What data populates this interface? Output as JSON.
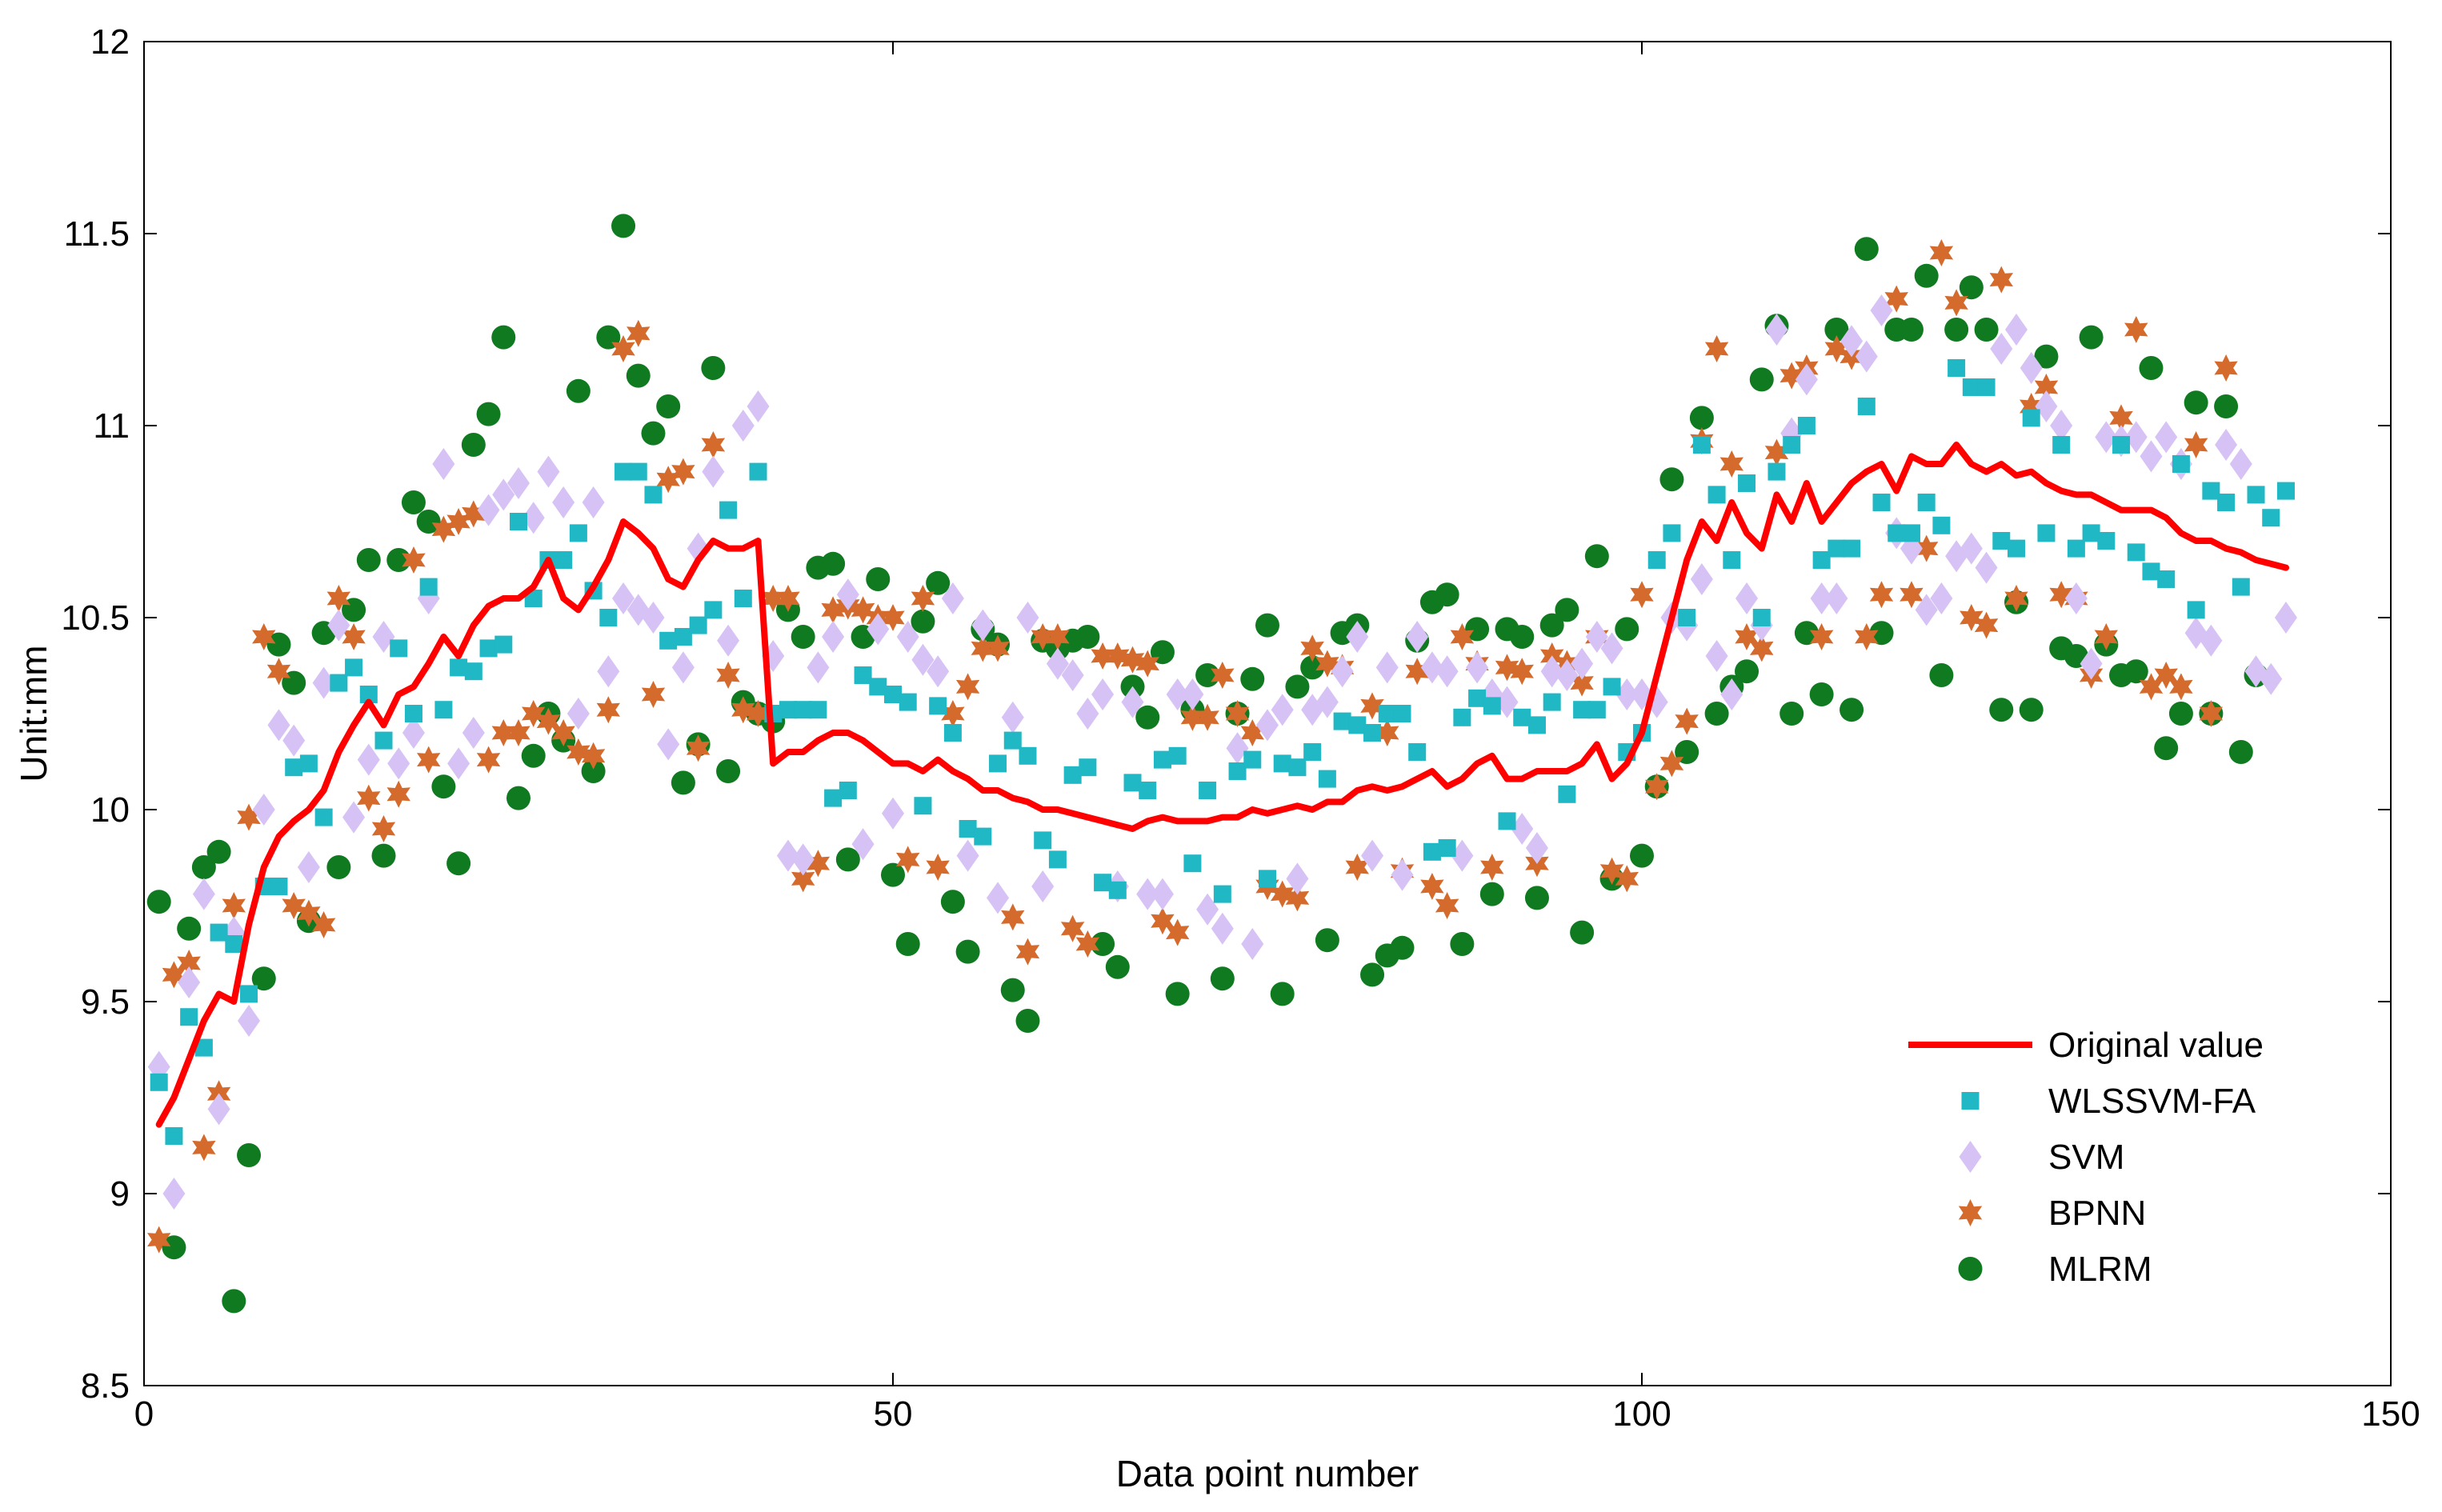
{
  "chart_data": {
    "type": "line",
    "xlabel": "Data point number",
    "ylabel": "Unit:mm",
    "xlim": [
      0,
      150
    ],
    "ylim": [
      8.5,
      12
    ],
    "xticks": [
      "0",
      "50",
      "100",
      "150"
    ],
    "yticks": [
      "8.5",
      "9",
      "9.5",
      "10",
      "10.5",
      "11",
      "11.5",
      "12"
    ],
    "grid": false,
    "legend_position": "bottom-right",
    "series": [
      {
        "name": "Original value",
        "type": "line",
        "color": "#ff0000",
        "values": [
          9.18,
          9.25,
          9.35,
          9.45,
          9.52,
          9.5,
          9.7,
          9.85,
          9.93,
          9.97,
          10.0,
          10.05,
          10.15,
          10.22,
          10.28,
          10.22,
          10.3,
          10.32,
          10.38,
          10.45,
          10.4,
          10.48,
          10.53,
          10.55,
          10.55,
          10.58,
          10.65,
          10.55,
          10.52,
          10.58,
          10.65,
          10.75,
          10.72,
          10.68,
          10.6,
          10.58,
          10.65,
          10.7,
          10.68,
          10.68,
          10.7,
          10.12,
          10.15,
          10.15,
          10.18,
          10.2,
          10.2,
          10.18,
          10.15,
          10.12,
          10.12,
          10.1,
          10.13,
          10.1,
          10.08,
          10.05,
          10.05,
          10.03,
          10.02,
          10.0,
          10.0,
          9.99,
          9.98,
          9.97,
          9.96,
          9.95,
          9.97,
          9.98,
          9.97,
          9.97,
          9.97,
          9.98,
          9.98,
          10.0,
          9.99,
          10.0,
          10.01,
          10.0,
          10.02,
          10.02,
          10.05,
          10.06,
          10.05,
          10.06,
          10.08,
          10.1,
          10.06,
          10.08,
          10.12,
          10.14,
          10.08,
          10.08,
          10.1,
          10.1,
          10.1,
          10.12,
          10.17,
          10.08,
          10.12,
          10.2,
          10.35,
          10.5,
          10.65,
          10.75,
          10.7,
          10.8,
          10.72,
          10.68,
          10.82,
          10.75,
          10.85,
          10.75,
          10.8,
          10.85,
          10.88,
          10.9,
          10.83,
          10.92,
          10.9,
          10.9,
          10.95,
          10.9,
          10.88,
          10.9,
          10.87,
          10.88,
          10.85,
          10.83,
          10.82,
          10.82,
          10.8,
          10.78,
          10.78,
          10.78,
          10.76,
          10.72,
          10.7,
          10.7,
          10.68,
          10.67,
          10.65,
          10.64,
          10.63
        ]
      },
      {
        "name": "WLSSVM-FA",
        "type": "scatter",
        "marker": "square",
        "color": "#1fb8c4",
        "values": [
          9.29,
          9.15,
          9.46,
          9.38,
          9.68,
          9.65,
          9.52,
          9.8,
          9.8,
          10.11,
          10.12,
          9.98,
          10.33,
          10.37,
          10.3,
          10.18,
          10.42,
          10.25,
          10.58,
          10.26,
          10.37,
          10.36,
          10.42,
          10.43,
          10.75,
          10.55,
          10.65,
          10.65,
          10.72,
          10.57,
          10.5,
          10.88,
          10.88,
          10.82,
          10.44,
          10.45,
          10.48,
          10.52,
          10.78,
          10.55,
          10.88,
          10.25,
          10.26,
          10.26,
          10.26,
          10.03,
          10.05,
          10.35,
          10.32,
          10.3,
          10.28,
          10.01,
          10.27,
          10.2,
          9.95,
          9.93,
          10.12,
          10.18,
          10.14,
          9.92,
          9.87,
          10.09,
          10.11,
          9.81,
          9.79,
          10.07,
          10.05,
          10.13,
          10.14,
          9.86,
          10.05,
          9.78,
          10.1,
          10.13,
          9.82,
          10.12,
          10.11,
          10.15,
          10.08,
          10.23,
          10.22,
          10.2,
          10.25,
          10.25,
          10.15,
          9.89,
          9.9,
          10.24,
          10.29,
          10.27,
          9.97,
          10.24,
          10.22,
          10.28,
          10.04,
          10.26,
          10.26,
          10.32,
          10.15,
          10.2,
          10.65,
          10.72,
          10.5,
          10.95,
          10.82,
          10.65,
          10.85,
          10.5,
          10.88,
          10.95,
          11.0,
          10.65,
          10.68,
          10.68,
          11.05,
          10.8,
          10.72,
          10.72,
          10.8,
          10.74,
          11.15,
          11.1,
          11.1,
          10.7,
          10.68,
          11.02,
          10.72,
          10.95,
          10.68,
          10.72,
          10.7,
          10.95,
          10.67,
          10.62,
          10.6,
          10.9,
          10.52,
          10.83,
          10.8,
          10.58,
          10.82,
          10.76,
          10.83
        ]
      },
      {
        "name": "SVM",
        "type": "scatter",
        "marker": "diamond",
        "color": "#d6c2f5",
        "values": [
          9.33,
          9.0,
          9.55,
          9.78,
          9.22,
          9.68,
          9.45,
          10.0,
          10.22,
          10.18,
          9.85,
          10.33,
          10.48,
          9.98,
          10.13,
          10.45,
          10.12,
          10.2,
          10.55,
          10.9,
          10.12,
          10.2,
          10.78,
          10.82,
          10.85,
          10.76,
          10.88,
          10.8,
          10.25,
          10.8,
          10.36,
          10.55,
          10.52,
          10.5,
          10.17,
          10.37,
          10.68,
          10.88,
          10.44,
          11.0,
          11.05,
          10.4,
          9.88,
          9.87,
          10.37,
          10.45,
          10.56,
          9.91,
          10.47,
          9.99,
          10.45,
          10.39,
          10.36,
          10.55,
          9.88,
          10.48,
          9.77,
          10.24,
          10.5,
          9.8,
          10.38,
          10.35,
          10.25,
          10.3,
          9.8,
          10.28,
          9.78,
          9.78,
          10.3,
          10.3,
          9.74,
          9.69,
          10.16,
          9.65,
          10.22,
          10.26,
          9.82,
          10.26,
          10.28,
          10.36,
          10.45,
          9.88,
          10.37,
          9.83,
          10.45,
          10.37,
          10.36,
          9.88,
          10.37,
          10.3,
          10.28,
          9.95,
          9.9,
          10.36,
          10.35,
          10.38,
          10.45,
          10.42,
          10.3,
          10.3,
          10.28,
          10.5,
          10.48,
          10.6,
          10.4,
          10.3,
          10.55,
          10.48,
          11.25,
          10.98,
          11.12,
          10.55,
          10.55,
          11.22,
          11.18,
          11.3,
          10.72,
          10.68,
          10.52,
          10.55,
          10.66,
          10.68,
          10.63,
          11.2,
          11.25,
          11.15,
          11.05,
          11.0,
          10.55,
          10.38,
          10.97,
          10.96,
          10.97,
          10.92,
          10.97,
          10.9,
          10.46,
          10.44,
          10.95,
          10.9,
          10.36,
          10.34,
          10.5
        ]
      },
      {
        "name": "BPNN",
        "type": "scatter",
        "marker": "star",
        "color": "#d46a2c",
        "values": [
          8.88,
          9.57,
          9.6,
          9.12,
          9.26,
          9.75,
          9.98,
          10.45,
          10.36,
          9.75,
          9.73,
          9.7,
          10.55,
          10.45,
          10.03,
          9.95,
          10.04,
          10.65,
          10.13,
          10.73,
          10.75,
          10.77,
          10.13,
          10.2,
          10.2,
          10.25,
          10.23,
          10.2,
          10.15,
          10.14,
          10.26,
          11.2,
          11.24,
          10.3,
          10.86,
          10.88,
          10.16,
          10.95,
          10.35,
          10.26,
          10.25,
          10.55,
          10.55,
          9.82,
          9.86,
          10.52,
          10.53,
          10.52,
          10.5,
          10.5,
          9.87,
          10.55,
          9.85,
          10.25,
          10.32,
          10.42,
          10.42,
          9.72,
          9.63,
          10.45,
          10.45,
          9.69,
          9.65,
          10.4,
          10.4,
          10.39,
          10.38,
          9.71,
          9.68,
          10.24,
          10.24,
          10.35,
          10.25,
          10.2,
          9.8,
          9.78,
          9.77,
          10.42,
          10.38,
          10.37,
          9.85,
          10.27,
          10.2,
          9.84,
          10.36,
          9.8,
          9.75,
          10.45,
          10.38,
          9.85,
          10.37,
          10.36,
          9.86,
          10.4,
          10.38,
          10.33,
          10.45,
          9.84,
          9.82,
          10.56,
          10.06,
          10.12,
          10.23,
          10.96,
          11.2,
          10.9,
          10.45,
          10.42,
          10.93,
          11.13,
          11.15,
          10.45,
          11.2,
          11.18,
          10.45,
          10.56,
          11.33,
          10.56,
          10.68,
          11.45,
          11.32,
          10.5,
          10.48,
          11.38,
          10.55,
          11.05,
          11.1,
          10.56,
          10.55,
          10.35,
          10.45,
          11.02,
          11.25,
          10.32,
          10.35,
          10.32,
          10.95,
          10.25,
          11.15
        ]
      },
      {
        "name": "MLRM",
        "type": "scatter",
        "marker": "circle",
        "color": "#0f7a1f",
        "values": [
          9.76,
          8.86,
          9.69,
          9.85,
          9.89,
          8.72,
          9.1,
          9.56,
          10.43,
          10.33,
          9.71,
          10.46,
          9.85,
          10.52,
          10.65,
          9.88,
          10.65,
          10.8,
          10.75,
          10.06,
          9.86,
          10.95,
          11.03,
          11.23,
          10.03,
          10.14,
          10.25,
          10.18,
          11.09,
          10.1,
          11.23,
          11.52,
          11.13,
          10.98,
          11.05,
          10.07,
          10.17,
          11.15,
          10.1,
          10.28,
          10.25,
          10.23,
          10.52,
          10.45,
          10.63,
          10.64,
          9.87,
          10.45,
          10.6,
          9.83,
          9.65,
          10.49,
          10.59,
          9.76,
          9.63,
          10.47,
          10.43,
          9.53,
          9.45,
          10.44,
          10.42,
          10.44,
          10.45,
          9.65,
          9.59,
          10.32,
          10.24,
          10.41,
          9.52,
          10.26,
          10.35,
          9.56,
          10.25,
          10.34,
          10.48,
          9.52,
          10.32,
          10.37,
          9.66,
          10.46,
          10.48,
          9.57,
          9.62,
          9.64,
          10.44,
          10.54,
          10.56,
          9.65,
          10.47,
          9.78,
          10.47,
          10.45,
          9.77,
          10.48,
          10.52,
          9.68,
          10.66,
          9.82,
          10.47,
          9.88,
          10.06,
          10.86,
          10.15,
          11.02,
          10.25,
          10.32,
          10.36,
          11.12,
          11.26,
          10.25,
          10.46,
          10.3,
          11.25,
          10.26,
          11.46,
          10.46,
          11.25,
          11.25,
          11.39,
          10.35,
          11.25,
          11.36,
          11.25,
          10.26,
          10.54,
          10.26,
          11.18,
          10.42,
          10.4,
          11.23,
          10.43,
          10.35,
          10.36,
          11.15,
          10.16,
          10.25,
          11.06,
          10.25,
          11.05,
          10.15,
          10.35
        ]
      }
    ]
  }
}
